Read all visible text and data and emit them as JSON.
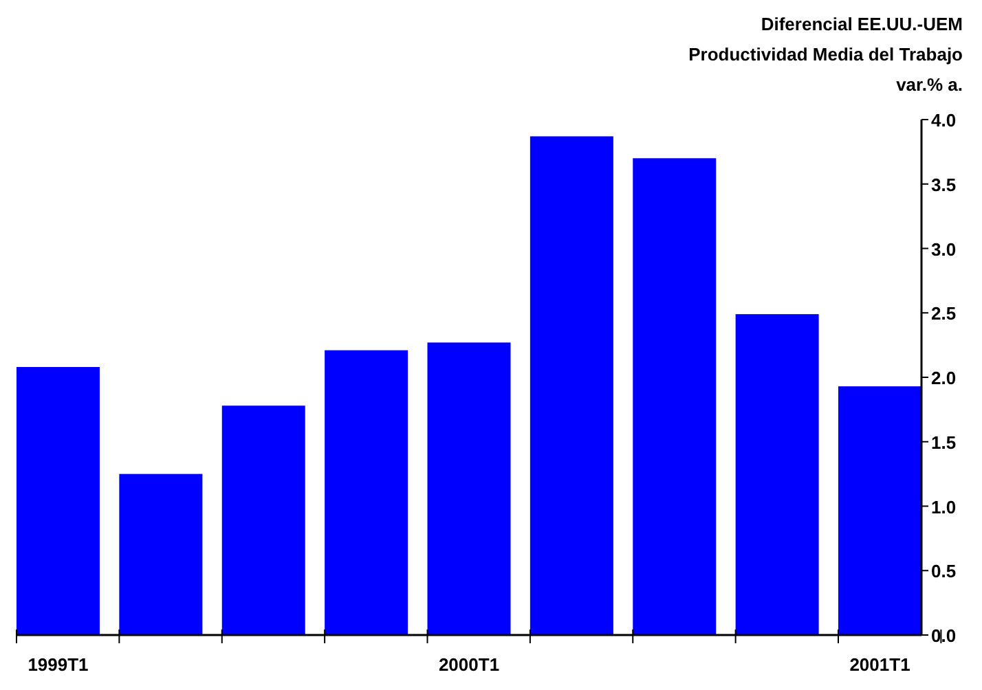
{
  "chart_data": {
    "type": "bar",
    "title": "Diferencial EE.UU.-UEM",
    "subtitle": "Productividad Media del Trabajo",
    "ylabel": "var.% a.",
    "categories": [
      "1999T1",
      null,
      null,
      null,
      "2000T1",
      null,
      null,
      null,
      "2001T1"
    ],
    "values": [
      2.08,
      1.25,
      1.78,
      2.21,
      2.27,
      3.87,
      3.7,
      2.49,
      1.93
    ],
    "color": "#0000ff",
    "ylim": [
      0,
      4
    ],
    "yticks": [
      {
        "value": 0,
        "label": "0.0"
      },
      {
        "value": 0.5,
        "label": "0.5"
      },
      {
        "value": 1,
        "label": "1.0"
      },
      {
        "value": 1.5,
        "label": "1.5"
      },
      {
        "value": 2,
        "label": "2.0"
      },
      {
        "value": 2.5,
        "label": "2.5"
      },
      {
        "value": 3,
        "label": "3.0"
      },
      {
        "value": 3.5,
        "label": "3.5"
      },
      {
        "value": 4,
        "label": "4.0"
      }
    ],
    "grid": false
  }
}
